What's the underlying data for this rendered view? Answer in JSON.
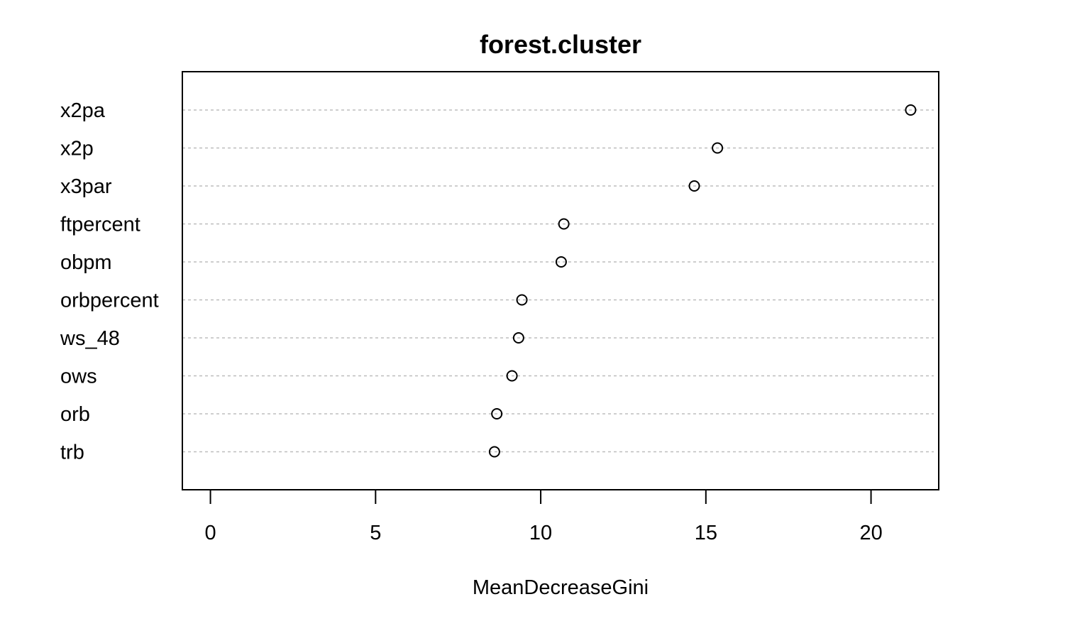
{
  "chart_data": {
    "type": "scatter",
    "title": "forest.cluster",
    "xlabel": "MeanDecreaseGini",
    "ylabel": "",
    "xlim": [
      -0.85,
      22.05
    ],
    "xticks": [
      0,
      5,
      10,
      15,
      20
    ],
    "xtick_labels": [
      "0",
      "5",
      "10",
      "15",
      "20"
    ],
    "grid": "dotted horizontal guide line per variable",
    "categories": [
      "x2pa",
      "x2p",
      "x3par",
      "ftpercent",
      "obpm",
      "orbpercent",
      "ws_48",
      "ows",
      "orb",
      "trb"
    ],
    "values": [
      21.2,
      15.35,
      14.65,
      10.7,
      10.62,
      9.43,
      9.33,
      9.13,
      8.67,
      8.6
    ]
  }
}
